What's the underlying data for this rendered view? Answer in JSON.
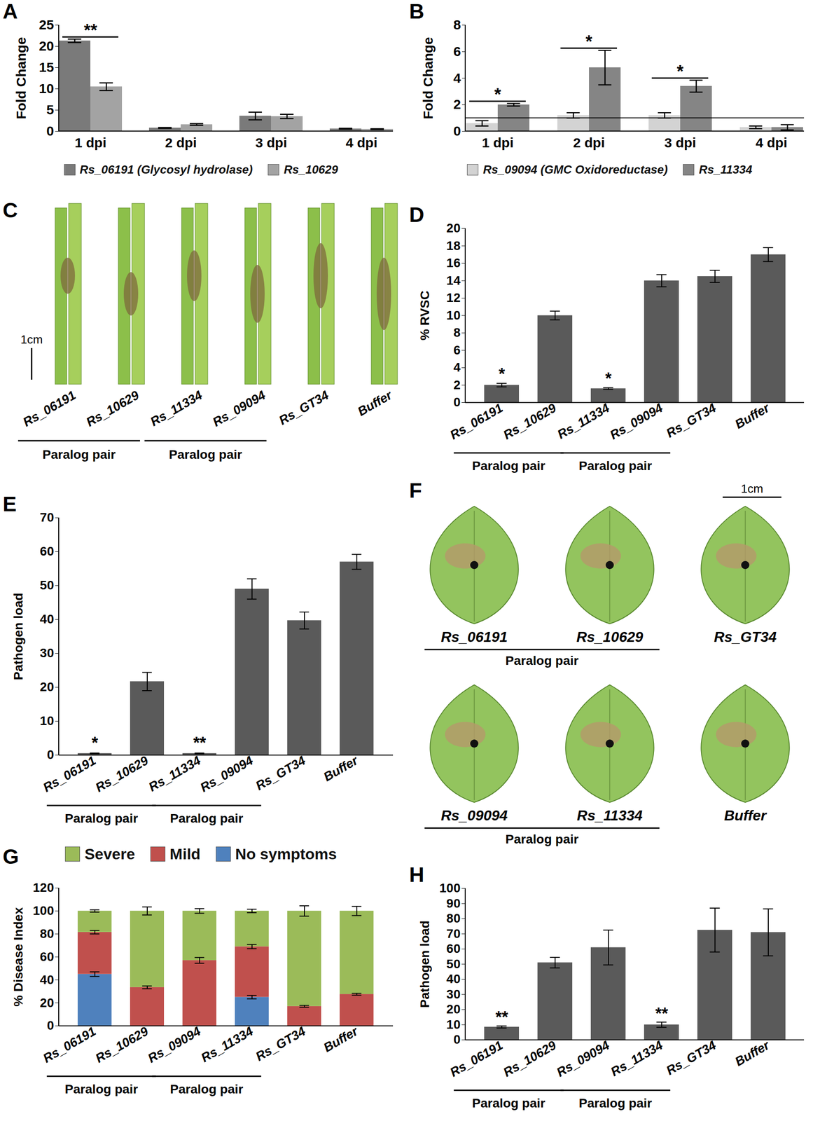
{
  "chart_data": [
    {
      "panel": "A",
      "type": "bar",
      "categories": [
        "1 dpi",
        "2 dpi",
        "3 dpi",
        "4 dpi"
      ],
      "y_label": "Fold Change",
      "ylim": [
        0,
        25
      ],
      "yticks": [
        0,
        5,
        10,
        15,
        20,
        25
      ],
      "legend": "bottom",
      "series": [
        {
          "name": "Rs_06191 (Glycosyl hydrolase)",
          "color": "#7a7a7a",
          "values": [
            21.3,
            0.8,
            3.6,
            0.6
          ],
          "errors": [
            0.4,
            0.1,
            0.9,
            0.1
          ]
        },
        {
          "name": "Rs_10629",
          "color": "#a3a3a3",
          "values": [
            10.5,
            1.6,
            3.5,
            0.5
          ],
          "errors": [
            0.9,
            0.2,
            0.5,
            0.1
          ]
        }
      ],
      "annotations": [
        {
          "category": "1 dpi",
          "text": "**"
        }
      ]
    },
    {
      "panel": "B",
      "type": "bar",
      "categories": [
        "1 dpi",
        "2 dpi",
        "3 dpi",
        "4 dpi"
      ],
      "y_label": "Fold Change",
      "ylim": [
        0,
        8
      ],
      "yticks": [
        0,
        2,
        4,
        6,
        8
      ],
      "legend": "bottom",
      "reference_line": 1,
      "series": [
        {
          "name": "Rs_09094 (GMC Oxidoreductase)",
          "color": "#d3d3d3",
          "values": [
            0.6,
            1.2,
            1.2,
            0.3
          ],
          "errors": [
            0.2,
            0.2,
            0.2,
            0.1
          ]
        },
        {
          "name": "Rs_11334",
          "color": "#858585",
          "values": [
            2.0,
            4.8,
            3.4,
            0.3
          ],
          "errors": [
            0.1,
            1.3,
            0.45,
            0.2
          ]
        }
      ],
      "annotations": [
        {
          "category": "1 dpi",
          "text": "*"
        },
        {
          "category": "2 dpi",
          "text": "*"
        },
        {
          "category": "3 dpi",
          "text": "*"
        }
      ]
    },
    {
      "panel": "C",
      "type": "image",
      "labels": [
        "Rs_06191",
        "Rs_10629",
        "Rs_11334",
        "Rs_09094",
        "Rs_GT34",
        "Buffer"
      ],
      "scale_bar": "1cm",
      "groups": [
        {
          "label": "Paralog pair",
          "categories": [
            "Rs_06191",
            "Rs_10629"
          ]
        },
        {
          "label": "Paralog pair",
          "categories": [
            "Rs_11334",
            "Rs_09094"
          ]
        }
      ]
    },
    {
      "panel": "D",
      "type": "bar",
      "categories": [
        "Rs_06191",
        "Rs_10629",
        "Rs_11334",
        "Rs_09094",
        "Rs_GT34",
        "Buffer"
      ],
      "y_label": "% RVSC",
      "ylim": [
        0,
        20
      ],
      "yticks": [
        0,
        2,
        4,
        6,
        8,
        10,
        12,
        14,
        16,
        18,
        20
      ],
      "color": "#5a5a5a",
      "values": [
        2.0,
        10.0,
        1.6,
        14.0,
        14.5,
        17.0
      ],
      "errors": [
        0.2,
        0.5,
        0.1,
        0.7,
        0.7,
        0.8
      ],
      "annotations": [
        {
          "category": "Rs_06191",
          "text": "*"
        },
        {
          "category": "Rs_11334",
          "text": "*"
        }
      ],
      "groups": [
        {
          "label": "Paralog pair",
          "categories": [
            "Rs_06191",
            "Rs_10629"
          ]
        },
        {
          "label": "Paralog pair",
          "categories": [
            "Rs_11334",
            "Rs_09094"
          ]
        }
      ]
    },
    {
      "panel": "E",
      "type": "bar",
      "categories": [
        "Rs_06191",
        "Rs_10629",
        "Rs_11334",
        "Rs_09094",
        "Rs_GT34",
        "Buffer"
      ],
      "y_label": "Pathogen load",
      "ylim": [
        0,
        70
      ],
      "yticks": [
        0,
        10,
        20,
        30,
        40,
        50,
        60,
        70
      ],
      "color": "#5a5a5a",
      "values": [
        0.5,
        21.7,
        0.5,
        49.0,
        39.7,
        57.0
      ],
      "errors": [
        0.1,
        2.7,
        0.1,
        3.0,
        2.5,
        2.2
      ],
      "annotations": [
        {
          "category": "Rs_06191",
          "text": "*"
        },
        {
          "category": "Rs_11334",
          "text": "**"
        }
      ],
      "groups": [
        {
          "label": "Paralog pair",
          "categories": [
            "Rs_06191",
            "Rs_10629"
          ]
        },
        {
          "label": "Paralog pair",
          "categories": [
            "Rs_11334",
            "Rs_09094"
          ]
        }
      ]
    },
    {
      "panel": "F",
      "type": "image",
      "labels": [
        "Rs_06191",
        "Rs_10629",
        "Rs_GT34",
        "Rs_09094",
        "Rs_11334",
        "Buffer"
      ],
      "scale_bar": "1cm",
      "groups": [
        {
          "label": "Paralog pair",
          "categories": [
            "Rs_06191",
            "Rs_10629"
          ]
        },
        {
          "label": "Paralog pair",
          "categories": [
            "Rs_09094",
            "Rs_11334"
          ]
        }
      ]
    },
    {
      "panel": "G",
      "type": "bar",
      "stacked": true,
      "categories": [
        "Rs_06191",
        "Rs_10629",
        "Rs_09094",
        "Rs_11334",
        "Rs_GT34",
        "Buffer"
      ],
      "y_label": "% Disease Index",
      "ylim": [
        0,
        120
      ],
      "yticks": [
        0,
        20,
        40,
        60,
        80,
        100,
        120
      ],
      "legend": "top",
      "series": [
        {
          "name": "No symptoms",
          "color": "#4f81bd",
          "values": [
            45,
            0,
            0,
            25,
            0,
            0
          ],
          "errors": [
            2,
            0,
            0,
            1.5,
            0,
            0
          ]
        },
        {
          "name": "Mild",
          "color": "#c0504d",
          "values": [
            36.5,
            33.5,
            57,
            44,
            17,
            27.5
          ],
          "errors": [
            1.5,
            1.2,
            2.5,
            1.8,
            0.8,
            0.8
          ]
        },
        {
          "name": "Severe",
          "color": "#9bbb59",
          "values": [
            18.5,
            66.5,
            43,
            31,
            83,
            72.5
          ],
          "errors": [
            1,
            3.5,
            2,
            1.5,
            4.5,
            4
          ]
        }
      ],
      "groups": [
        {
          "label": "Paralog pair",
          "categories": [
            "Rs_06191",
            "Rs_10629"
          ]
        },
        {
          "label": "Paralog pair",
          "categories": [
            "Rs_09094",
            "Rs_11334"
          ]
        }
      ]
    },
    {
      "panel": "H",
      "type": "bar",
      "categories": [
        "Rs_06191",
        "Rs_10629",
        "Rs_09094",
        "Rs_11334",
        "Rs_GT34",
        "Buffer"
      ],
      "y_label": "Pathogen load",
      "ylim": [
        0,
        100
      ],
      "yticks": [
        0,
        10,
        20,
        30,
        40,
        50,
        60,
        70,
        80,
        90,
        100
      ],
      "color": "#5a5a5a",
      "values": [
        8.5,
        51,
        61,
        10,
        72.5,
        71
      ],
      "errors": [
        0.7,
        3.5,
        11.5,
        1.7,
        14.5,
        15.5
      ],
      "annotations": [
        {
          "category": "Rs_06191",
          "text": "**"
        },
        {
          "category": "Rs_11334",
          "text": "**"
        }
      ],
      "groups": [
        {
          "label": "Paralog pair",
          "categories": [
            "Rs_06191",
            "Rs_10629"
          ]
        },
        {
          "label": "Paralog pair",
          "categories": [
            "Rs_09094",
            "Rs_11334"
          ]
        }
      ]
    }
  ]
}
